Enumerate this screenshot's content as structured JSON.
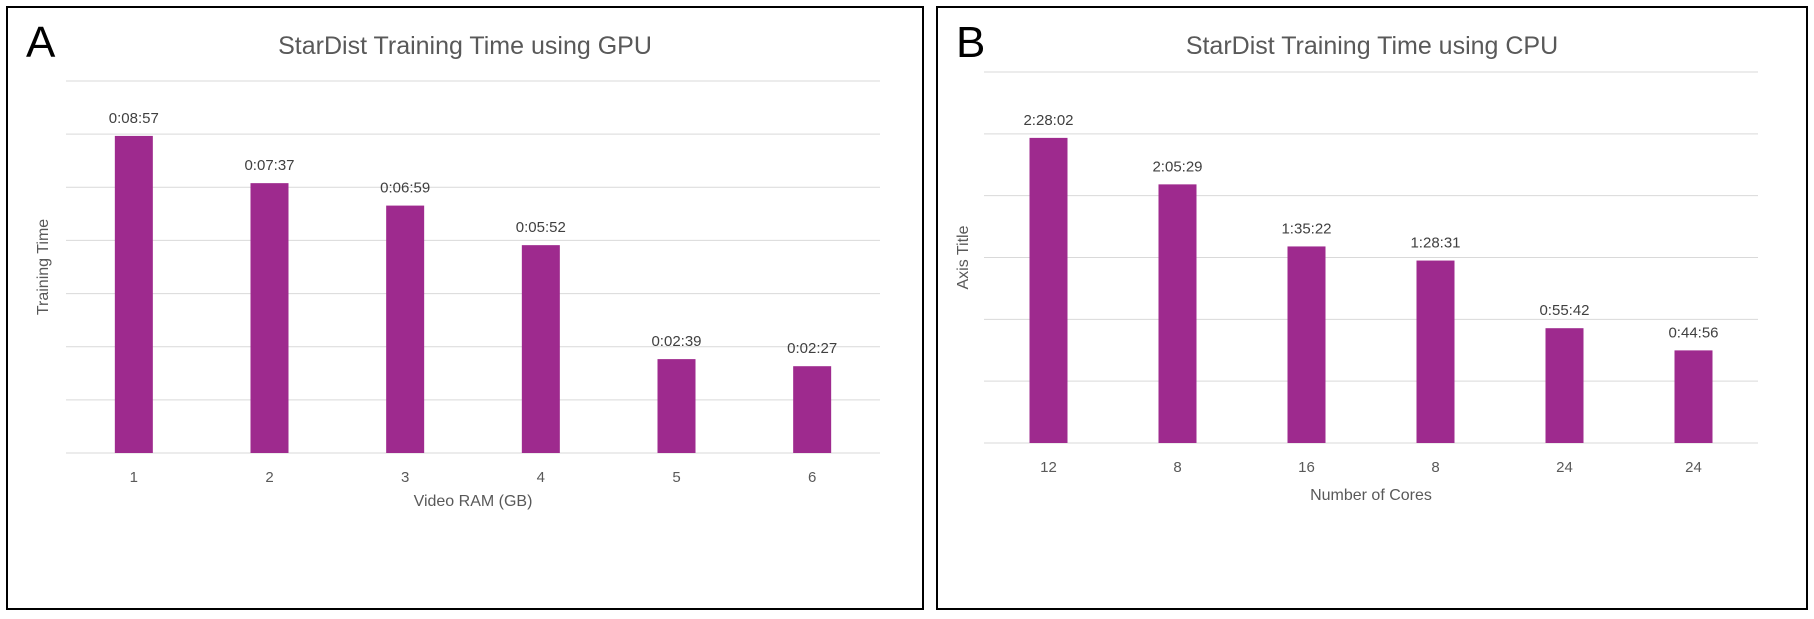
{
  "colors": {
    "bar": "#9e2a8e",
    "grid": "#d9d9d9",
    "text": "#595959"
  },
  "panels": [
    {
      "letter": "A",
      "chart_data": {
        "type": "bar",
        "title": "StarDist Training Time using GPU",
        "xlabel": "Video RAM (GB)",
        "ylabel": "Training Time",
        "categories": [
          "1",
          "2",
          "3",
          "4",
          "5",
          "6"
        ],
        "values_seconds": [
          537,
          457,
          419,
          352,
          159,
          147
        ],
        "data_labels": [
          "0:08:57",
          "0:07:37",
          "0:06:59",
          "0:05:52",
          "0:02:39",
          "0:02:27"
        ],
        "ylim_seconds": [
          0,
          630
        ],
        "grid": true,
        "legend": "none"
      }
    },
    {
      "letter": "B",
      "chart_data": {
        "type": "bar",
        "title": "StarDist Training Time using CPU",
        "xlabel": "Number of Cores",
        "ylabel": "Axis Title",
        "categories": [
          "12",
          "8",
          "16",
          "8",
          "24",
          "24"
        ],
        "values_seconds": [
          8882,
          7529,
          5722,
          5311,
          3342,
          2696
        ],
        "data_labels": [
          "2:28:02",
          "2:05:29",
          "1:35:22",
          "1:28:31",
          "0:55:42",
          "0:44:56"
        ],
        "ylim_seconds": [
          0,
          10800
        ],
        "grid": true,
        "legend": "none"
      }
    }
  ]
}
